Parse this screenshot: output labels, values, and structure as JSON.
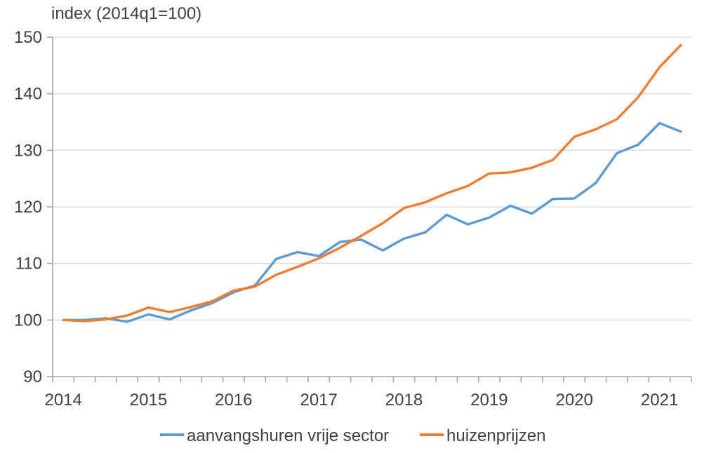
{
  "title": "index (2014q1=100)",
  "colors": {
    "series_rent": "#5B9BD5",
    "series_house_prices": "#ED7D31",
    "gridline": "#D9D9D9",
    "axis": "#A6A6A6",
    "text": "#404040"
  },
  "chart_data": {
    "type": "line",
    "title": "index (2014q1=100)",
    "categories": [
      "2014q1",
      "2014q2",
      "2014q3",
      "2014q4",
      "2015q1",
      "2015q2",
      "2015q3",
      "2015q4",
      "2016q1",
      "2016q2",
      "2016q3",
      "2016q4",
      "2017q1",
      "2017q2",
      "2017q3",
      "2017q4",
      "2018q1",
      "2018q2",
      "2018q3",
      "2018q4",
      "2019q1",
      "2019q2",
      "2019q3",
      "2019q4",
      "2020q1",
      "2020q2",
      "2020q3",
      "2020q4",
      "2021q1",
      "2021q2"
    ],
    "x_tick_labels": [
      "2014",
      "2015",
      "2016",
      "2017",
      "2018",
      "2019",
      "2020",
      "2021"
    ],
    "ylim": [
      90,
      150
    ],
    "yticks": [
      90,
      100,
      110,
      120,
      130,
      140,
      150
    ],
    "grid": true,
    "legend_position": "bottom",
    "series": [
      {
        "name": "aanvangshuren vrije sector",
        "color": "#5B9BD5",
        "values": [
          100.0,
          100.0,
          100.3,
          99.7,
          101.0,
          100.1,
          101.7,
          103.0,
          104.9,
          106.1,
          110.8,
          112.0,
          111.3,
          113.8,
          114.2,
          112.3,
          114.4,
          115.5,
          118.6,
          116.9,
          118.1,
          120.2,
          118.8,
          121.4,
          121.5,
          124.2,
          129.5,
          131.0,
          134.8,
          133.3
        ]
      },
      {
        "name": "huizenprijzen",
        "color": "#ED7D31",
        "values": [
          100.0,
          99.8,
          100.1,
          100.8,
          102.2,
          101.4,
          102.3,
          103.3,
          105.2,
          105.9,
          108.0,
          109.4,
          110.9,
          112.8,
          114.9,
          117.1,
          119.8,
          120.8,
          122.4,
          123.7,
          125.9,
          126.1,
          126.9,
          128.3,
          132.4,
          133.7,
          135.5,
          139.4,
          144.7,
          148.6
        ]
      }
    ]
  }
}
